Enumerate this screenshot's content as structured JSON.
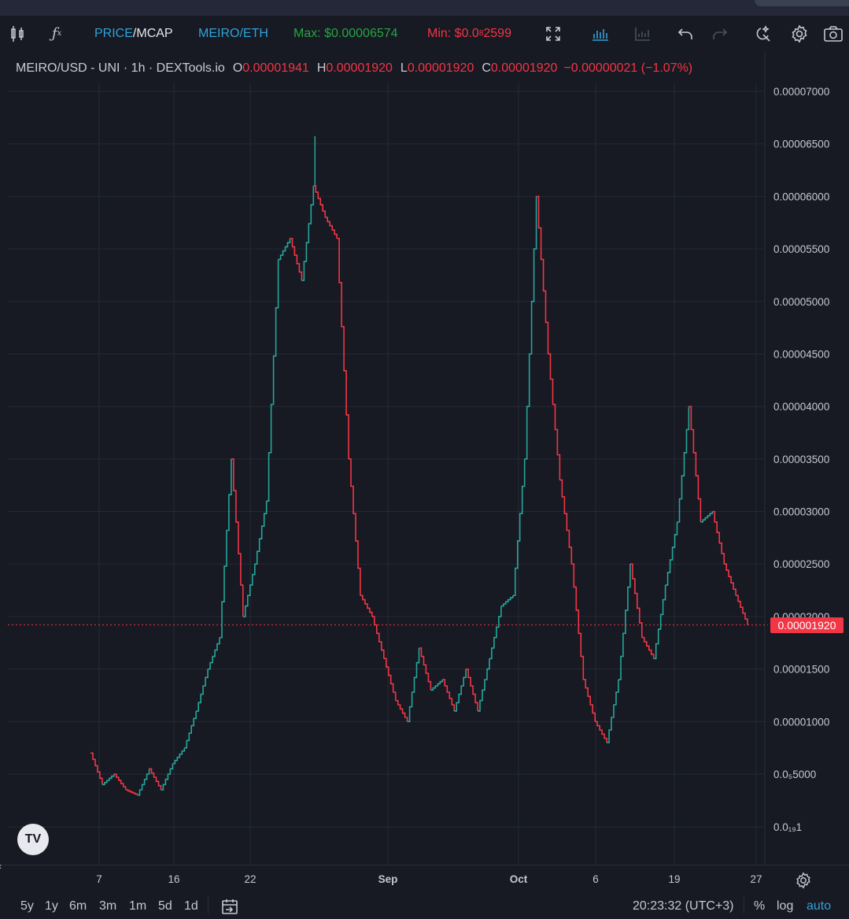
{
  "toolbar": {
    "indicator_icon": "candlestick-icon",
    "fx_icon": "function-icon",
    "price_label": "PRICE",
    "sep": "/",
    "mcap_label": "MCAP",
    "pair_label": "MEIRO/ETH",
    "max_label": "Max: $0.00006574",
    "min_label": "Min: $0.0",
    "min_sub": "8",
    "min_rest": "2599",
    "icons": [
      "fullscreen-icon",
      "bar-chart-icon",
      "bar-chart-disabled-icon",
      "undo-icon",
      "redo-icon",
      "magic-icon",
      "settings-icon",
      "camera-icon"
    ]
  },
  "legend": {
    "symbol": "MEIRO/USD - UNI · 1h · DEXTools.io",
    "o_key": "O",
    "o_val": "0.00001941",
    "h_key": "H",
    "h_val": "0.00001920",
    "l_key": "L",
    "l_val": "0.00001920",
    "c_key": "C",
    "c_val": "0.00001920",
    "change": "−0.00000021 (−1.07%)"
  },
  "current_price": "0.00001920",
  "tv_logo": "TV",
  "bottom": {
    "ranges": [
      "5y",
      "1y",
      "6m",
      "3m",
      "1m",
      "5d",
      "1d"
    ],
    "goto_icon": "calendar-goto-icon",
    "time": "20:23:32 (UTC+3)",
    "percent": "%",
    "log": "log",
    "auto": "auto"
  },
  "colors": {
    "up": "#26a69a",
    "down": "#f23645",
    "bg": "#171923",
    "grid": "#262a36",
    "accent": "#2fa3d9",
    "max": "#26a641"
  },
  "chart_data": {
    "type": "line",
    "title": "MEIRO/USD - UNI · 1h · DEXTools.io",
    "ylim": [
      0,
      7.35e-05
    ],
    "y_ticks": [
      "0.00007000",
      "0.00006500",
      "0.00006000",
      "0.00005500",
      "0.00005000",
      "0.00004500",
      "0.00004000",
      "0.00003500",
      "0.00003000",
      "0.00002500",
      "0.00002000",
      "0.00001500",
      "0.00001000",
      "0.0₅5000",
      "0.0₁₉1"
    ],
    "y_tick_values": [
      7e-05,
      6.5e-05,
      6e-05,
      5.5e-05,
      5e-05,
      4.5e-05,
      4e-05,
      3.5e-05,
      3e-05,
      2.5e-05,
      2e-05,
      1.5e-05,
      1e-05,
      5e-06,
      0
    ],
    "x_ticks": [
      "7",
      "16",
      "22",
      "Sep",
      "Oct",
      "6",
      "19",
      "27"
    ],
    "series": [
      {
        "x": [
          "Aug 6",
          "Aug 7",
          "Aug 8",
          "Aug 10",
          "Aug 12",
          "Aug 14",
          "Aug 16",
          "Aug 18",
          "Aug 20",
          "Aug 21",
          "Aug 22",
          "Aug 23",
          "Aug 24",
          "Aug 25",
          "Aug 26",
          "Aug 27",
          "Aug 28",
          "Aug 29",
          "Aug 30",
          "Aug 31",
          "Sep 2",
          "Sep 4",
          "Sep 6",
          "Sep 8",
          "Sep 10",
          "Sep 12",
          "Sep 14",
          "Sep 16",
          "Sep 18",
          "Sep 20",
          "Sep 22",
          "Sep 24",
          "Sep 26",
          "Sep 28",
          "Oct 1",
          "Oct 2",
          "Oct 3",
          "Oct 4",
          "Oct 5",
          "Oct 6",
          "Oct 7",
          "Oct 8",
          "Oct 10",
          "Oct 12",
          "Oct 14",
          "Oct 15",
          "Oct 16",
          "Oct 17",
          "Oct 18",
          "Oct 19",
          "Oct 20",
          "Oct 21",
          "Oct 22",
          "Oct 23",
          "Oct 24",
          "Oct 25",
          "Oct 26"
        ],
        "values": [
          7e-06,
          4e-06,
          5e-06,
          3.5e-06,
          3e-06,
          5.5e-06,
          3.5e-06,
          6e-06,
          7.5e-06,
          1.1e-05,
          1.5e-05,
          1.8e-05,
          3.5e-05,
          2e-05,
          2.5e-05,
          3.1e-05,
          5.4e-05,
          5.6e-05,
          5.2e-05,
          6.1e-05,
          5.8e-05,
          5.6e-05,
          3.5e-05,
          2.2e-05,
          2e-05,
          1.6e-05,
          1.2e-05,
          1e-05,
          1.7e-05,
          1.3e-05,
          1.4e-05,
          1.1e-05,
          1.5e-05,
          1.1e-05,
          1.6e-05,
          2.1e-05,
          2.2e-05,
          3.5e-05,
          6e-05,
          4.5e-05,
          3.3e-05,
          2.5e-05,
          1.4e-05,
          1e-05,
          8e-06,
          1.4e-05,
          2.5e-05,
          1.8e-05,
          1.6e-05,
          2.3e-05,
          2.9e-05,
          4e-05,
          2.9e-05,
          3e-05,
          2.5e-05,
          2.2e-05,
          1.92e-05
        ]
      }
    ],
    "max": 6.574e-05,
    "min": "0.0₈2599",
    "last": 1.92e-05,
    "grid": true
  }
}
